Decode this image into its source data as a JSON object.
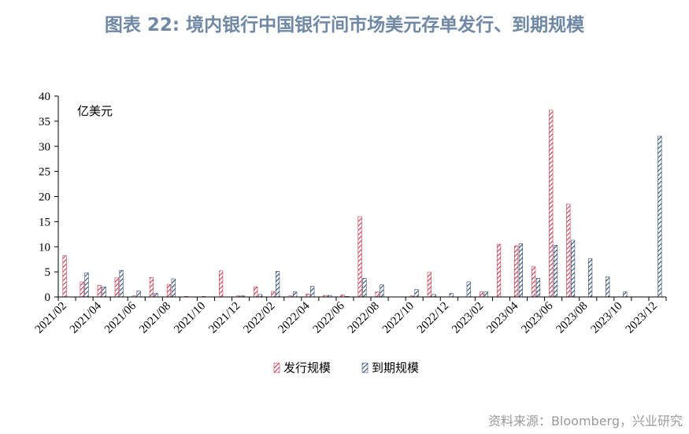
{
  "title": "图表 22: 境内银行中国银行间市场美元存单发行、到期规模",
  "source": "资料来源：Bloomberg，兴业研究",
  "chart_data": {
    "type": "bar",
    "unit_label": "亿美元",
    "ylim": [
      0,
      40
    ],
    "yticks": [
      0,
      5,
      10,
      15,
      20,
      25,
      30,
      35,
      40
    ],
    "categories": [
      "2021/02",
      "2021/03",
      "2021/04",
      "2021/05",
      "2021/06",
      "2021/07",
      "2021/08",
      "2021/09",
      "2021/10",
      "2021/11",
      "2021/12",
      "2022/01",
      "2022/02",
      "2022/03",
      "2022/04",
      "2022/05",
      "2022/06",
      "2022/07",
      "2022/08",
      "2022/09",
      "2022/10",
      "2022/11",
      "2022/12",
      "2023/01",
      "2023/02",
      "2023/03",
      "2023/04",
      "2023/05",
      "2023/06",
      "2023/07",
      "2023/08",
      "2023/09",
      "2023/10",
      "2023/11",
      "2023/12"
    ],
    "tick_labels": [
      "2021/02",
      "2021/04",
      "2021/06",
      "2021/08",
      "2021/10",
      "2021/12",
      "2022/02",
      "2022/04",
      "2022/06",
      "2022/08",
      "2022/10",
      "2022/12",
      "2023/02",
      "2023/04",
      "2023/06",
      "2023/08",
      "2023/10",
      "2023/12"
    ],
    "series": [
      {
        "name": "发行规模",
        "color": "#c9384f",
        "values": [
          8.2,
          3.0,
          2.3,
          3.8,
          0.2,
          3.9,
          2.5,
          0.1,
          0.1,
          5.2,
          0.2,
          2.0,
          1.1,
          0.2,
          0.6,
          0.3,
          0.4,
          16.0,
          1.0,
          0,
          0.2,
          4.9,
          0,
          0,
          1.0,
          10.5,
          10.2,
          6.0,
          37.2,
          18.5,
          0,
          0,
          0,
          0,
          0
        ]
      },
      {
        "name": "到期规模",
        "color": "#2e4a75",
        "values": [
          0,
          4.8,
          2.0,
          5.3,
          1.2,
          0.7,
          3.6,
          0,
          0,
          0,
          0.2,
          0.5,
          5.1,
          1.0,
          2.1,
          0.3,
          0.1,
          3.7,
          2.4,
          0,
          1.5,
          0.5,
          0.7,
          3.0,
          1.0,
          0,
          10.6,
          3.7,
          10.3,
          11.3,
          7.6,
          4.0,
          1.0,
          0,
          32.0
        ]
      }
    ],
    "legend_position": "bottom-center",
    "grid": false
  }
}
